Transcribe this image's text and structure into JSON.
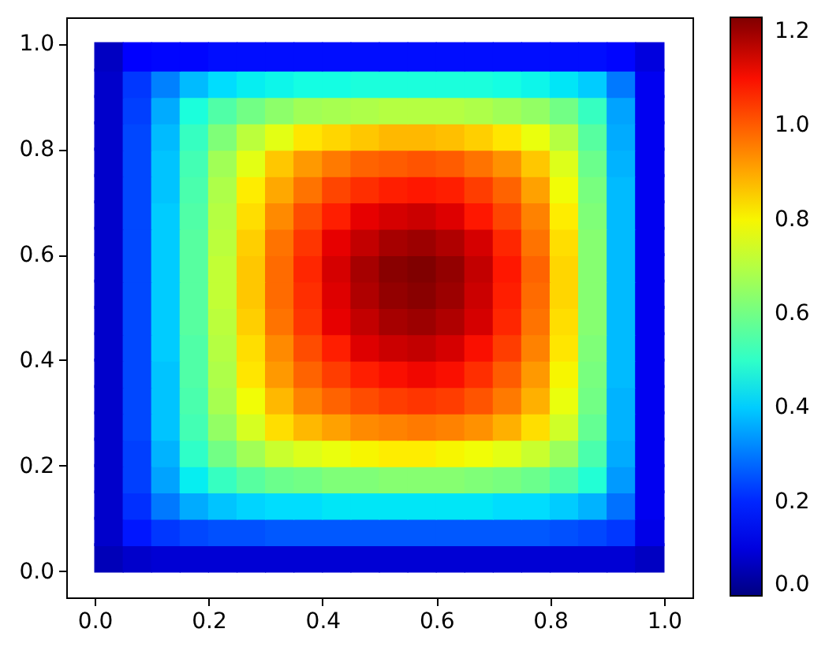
{
  "chart_data": {
    "type": "scatter",
    "marker": "square",
    "x": [
      0.025,
      0.075,
      0.125,
      0.175,
      0.225,
      0.275,
      0.325,
      0.375,
      0.425,
      0.475,
      0.525,
      0.575,
      0.625,
      0.675,
      0.725,
      0.775,
      0.825,
      0.875,
      0.925,
      0.975,
      0.025,
      0.075,
      0.125,
      0.175,
      0.225,
      0.275,
      0.325,
      0.375,
      0.425,
      0.475,
      0.525,
      0.575,
      0.625,
      0.675,
      0.725,
      0.775,
      0.825,
      0.875,
      0.925,
      0.975,
      0.025,
      0.075,
      0.125,
      0.175,
      0.225,
      0.275,
      0.325,
      0.375,
      0.425,
      0.475,
      0.525,
      0.575,
      0.625,
      0.675,
      0.725,
      0.775,
      0.825,
      0.875,
      0.925,
      0.975,
      0.025,
      0.075,
      0.125,
      0.175,
      0.225,
      0.275,
      0.325,
      0.375,
      0.425,
      0.475,
      0.525,
      0.575,
      0.625,
      0.675,
      0.725,
      0.775,
      0.825,
      0.875,
      0.925,
      0.975,
      0.025,
      0.075,
      0.125,
      0.175,
      0.225,
      0.275,
      0.325,
      0.375,
      0.425,
      0.475,
      0.525,
      0.575,
      0.625,
      0.675,
      0.725,
      0.775,
      0.825,
      0.875,
      0.925,
      0.975,
      0.025,
      0.075,
      0.125,
      0.175,
      0.225,
      0.275,
      0.325,
      0.375,
      0.425,
      0.475,
      0.525,
      0.575,
      0.625,
      0.675,
      0.725,
      0.775,
      0.825,
      0.875,
      0.925,
      0.975,
      0.025,
      0.075,
      0.125,
      0.175,
      0.225,
      0.275,
      0.325,
      0.375,
      0.425,
      0.475,
      0.525,
      0.575,
      0.625,
      0.675,
      0.725,
      0.775,
      0.825,
      0.875,
      0.925,
      0.975,
      0.025,
      0.075,
      0.125,
      0.175,
      0.225,
      0.275,
      0.325,
      0.375,
      0.425,
      0.475,
      0.525,
      0.575,
      0.625,
      0.675,
      0.725,
      0.775,
      0.825,
      0.875,
      0.925,
      0.975,
      0.025,
      0.075,
      0.125,
      0.175,
      0.225,
      0.275,
      0.325,
      0.375,
      0.425,
      0.475,
      0.525,
      0.575,
      0.625,
      0.675,
      0.725,
      0.775,
      0.825,
      0.875,
      0.925,
      0.975,
      0.025,
      0.075,
      0.125,
      0.175,
      0.225,
      0.275,
      0.325,
      0.375,
      0.425,
      0.475,
      0.525,
      0.575,
      0.625,
      0.675,
      0.725,
      0.775,
      0.825,
      0.875,
      0.925,
      0.975,
      0.025,
      0.075,
      0.125,
      0.175,
      0.225,
      0.275,
      0.325,
      0.375,
      0.425,
      0.475,
      0.525,
      0.575,
      0.625,
      0.675,
      0.725,
      0.775,
      0.825,
      0.875,
      0.925,
      0.975,
      0.025,
      0.075,
      0.125,
      0.175,
      0.225,
      0.275,
      0.325,
      0.375,
      0.425,
      0.475,
      0.525,
      0.575,
      0.625,
      0.675,
      0.725,
      0.775,
      0.825,
      0.875,
      0.925,
      0.975,
      0.025,
      0.075,
      0.125,
      0.175,
      0.225,
      0.275,
      0.325,
      0.375,
      0.425,
      0.475,
      0.525,
      0.575,
      0.625,
      0.675,
      0.725,
      0.775,
      0.825,
      0.875,
      0.925,
      0.975,
      0.025,
      0.075,
      0.125,
      0.175,
      0.225,
      0.275,
      0.325,
      0.375,
      0.425,
      0.475,
      0.525,
      0.575,
      0.625,
      0.675,
      0.725,
      0.775,
      0.825,
      0.875,
      0.925,
      0.975,
      0.025,
      0.075,
      0.125,
      0.175,
      0.225,
      0.275,
      0.325,
      0.375,
      0.425,
      0.475,
      0.525,
      0.575,
      0.625,
      0.675,
      0.725,
      0.775,
      0.825,
      0.875,
      0.925,
      0.975,
      0.025,
      0.075,
      0.125,
      0.175,
      0.225,
      0.275,
      0.325,
      0.375,
      0.425,
      0.475,
      0.525,
      0.575,
      0.625,
      0.675,
      0.725,
      0.775,
      0.825,
      0.875,
      0.925,
      0.975,
      0.025,
      0.075,
      0.125,
      0.175,
      0.225,
      0.275,
      0.325,
      0.375,
      0.425,
      0.475,
      0.525,
      0.575,
      0.625,
      0.675,
      0.725,
      0.775,
      0.825,
      0.875,
      0.925,
      0.975,
      0.025,
      0.075,
      0.125,
      0.175,
      0.225,
      0.275,
      0.325,
      0.375,
      0.425,
      0.475,
      0.525,
      0.575,
      0.625,
      0.675,
      0.725,
      0.775,
      0.825,
      0.875,
      0.925,
      0.975,
      0.025,
      0.075,
      0.125,
      0.175,
      0.225,
      0.275,
      0.325,
      0.375,
      0.425,
      0.475,
      0.525,
      0.575,
      0.625,
      0.675,
      0.725,
      0.775,
      0.825,
      0.875,
      0.925,
      0.975,
      0.025,
      0.075,
      0.125,
      0.175,
      0.225,
      0.275,
      0.325,
      0.375,
      0.425,
      0.475,
      0.525,
      0.575,
      0.625,
      0.675,
      0.725,
      0.775,
      0.825,
      0.875,
      0.925,
      0.975
    ],
    "values": [
      0.025,
      0.025,
      0.025,
      0.025,
      0.025,
      0.025,
      0.025,
      0.025,
      0.025,
      0.025,
      0.025,
      0.025,
      0.025,
      0.025,
      0.025,
      0.025,
      0.025,
      0.025,
      0.025,
      0.025,
      0.075,
      0.075,
      0.075,
      0.075,
      0.075,
      0.075,
      0.075,
      0.075,
      0.075,
      0.075,
      0.075,
      0.075,
      0.075,
      0.075,
      0.075,
      0.075,
      0.075,
      0.075,
      0.075,
      0.075,
      0.125,
      0.125,
      0.125,
      0.125,
      0.125,
      0.125,
      0.125,
      0.125,
      0.125,
      0.125,
      0.125,
      0.125,
      0.125,
      0.125,
      0.125,
      0.125,
      0.125,
      0.125,
      0.125,
      0.125,
      0.175,
      0.175,
      0.175,
      0.175,
      0.175,
      0.175,
      0.175,
      0.175,
      0.175,
      0.175,
      0.175,
      0.175,
      0.175,
      0.175,
      0.175,
      0.175,
      0.175,
      0.175,
      0.175,
      0.175,
      0.225,
      0.225,
      0.225,
      0.225,
      0.225,
      0.225,
      0.225,
      0.225,
      0.225,
      0.225,
      0.225,
      0.225,
      0.225,
      0.225,
      0.225,
      0.225,
      0.225,
      0.225,
      0.225,
      0.225,
      0.275,
      0.275,
      0.275,
      0.275,
      0.275,
      0.275,
      0.275,
      0.275,
      0.275,
      0.275,
      0.275,
      0.275,
      0.275,
      0.275,
      0.275,
      0.275,
      0.275,
      0.275,
      0.275,
      0.275,
      0.325,
      0.325,
      0.325,
      0.325,
      0.325,
      0.325,
      0.325,
      0.325,
      0.325,
      0.325,
      0.325,
      0.325,
      0.325,
      0.325,
      0.325,
      0.325,
      0.325,
      0.325,
      0.325,
      0.325,
      0.375,
      0.375,
      0.375,
      0.375,
      0.375,
      0.375,
      0.375,
      0.375,
      0.375,
      0.375,
      0.375,
      0.375,
      0.375,
      0.375,
      0.375,
      0.375,
      0.375,
      0.375,
      0.375,
      0.375,
      0.425,
      0.425,
      0.425,
      0.425,
      0.425,
      0.425,
      0.425,
      0.425,
      0.425,
      0.425,
      0.425,
      0.425,
      0.425,
      0.425,
      0.425,
      0.425,
      0.425,
      0.425,
      0.425,
      0.425,
      0.475,
      0.475,
      0.475,
      0.475,
      0.475,
      0.475,
      0.475,
      0.475,
      0.475,
      0.475,
      0.475,
      0.475,
      0.475,
      0.475,
      0.475,
      0.475,
      0.475,
      0.475,
      0.475,
      0.475,
      0.525,
      0.525,
      0.525,
      0.525,
      0.525,
      0.525,
      0.525,
      0.525,
      0.525,
      0.525,
      0.525,
      0.525,
      0.525,
      0.525,
      0.525,
      0.525,
      0.525,
      0.525,
      0.525,
      0.525,
      0.575,
      0.575,
      0.575,
      0.575,
      0.575,
      0.575,
      0.575,
      0.575,
      0.575,
      0.575,
      0.575,
      0.575,
      0.575,
      0.575,
      0.575,
      0.575,
      0.575,
      0.575,
      0.575,
      0.575,
      0.625,
      0.625,
      0.625,
      0.625,
      0.625,
      0.625,
      0.625,
      0.625,
      0.625,
      0.625,
      0.625,
      0.625,
      0.625,
      0.625,
      0.625,
      0.625,
      0.625,
      0.625,
      0.625,
      0.625,
      0.675,
      0.675,
      0.675,
      0.675,
      0.675,
      0.675,
      0.675,
      0.675,
      0.675,
      0.675,
      0.675,
      0.675,
      0.675,
      0.675,
      0.675,
      0.675,
      0.675,
      0.675,
      0.675,
      0.675,
      0.725,
      0.725,
      0.725,
      0.725,
      0.725,
      0.725,
      0.725,
      0.725,
      0.725,
      0.725,
      0.725,
      0.725,
      0.725,
      0.725,
      0.725,
      0.725,
      0.725,
      0.725,
      0.725,
      0.725,
      0.775,
      0.775,
      0.775,
      0.775,
      0.775,
      0.775,
      0.775,
      0.775,
      0.775,
      0.775,
      0.775,
      0.775,
      0.775,
      0.775,
      0.775,
      0.775,
      0.775,
      0.775,
      0.775,
      0.775,
      0.825,
      0.825,
      0.825,
      0.825,
      0.825,
      0.825,
      0.825,
      0.825,
      0.825,
      0.825,
      0.825,
      0.825,
      0.825,
      0.825,
      0.825,
      0.825,
      0.825,
      0.825,
      0.825,
      0.825,
      0.875,
      0.875,
      0.875,
      0.875,
      0.875,
      0.875,
      0.875,
      0.875,
      0.875,
      0.875,
      0.875,
      0.875,
      0.875,
      0.875,
      0.875,
      0.875,
      0.875,
      0.875,
      0.875,
      0.875,
      0.925,
      0.925,
      0.925,
      0.925,
      0.925,
      0.925,
      0.925,
      0.925,
      0.925,
      0.925,
      0.925,
      0.925,
      0.925,
      0.925,
      0.925,
      0.925,
      0.925,
      0.925,
      0.925,
      0.925,
      0.975,
      0.975,
      0.975,
      0.975,
      0.975,
      0.975,
      0.975,
      0.975,
      0.975,
      0.975,
      0.975,
      0.975,
      0.975,
      0.975,
      0.975,
      0.975,
      0.975,
      0.975,
      0.975,
      0.975
    ],
    "cvalues": [
      0.06,
      0.08,
      0.09,
      0.09,
      0.09,
      0.09,
      0.09,
      0.09,
      0.09,
      0.09,
      0.09,
      0.09,
      0.09,
      0.09,
      0.09,
      0.09,
      0.09,
      0.09,
      0.09,
      0.07,
      0.08,
      0.18,
      0.22,
      0.24,
      0.25,
      0.25,
      0.26,
      0.26,
      0.26,
      0.26,
      0.26,
      0.26,
      0.26,
      0.26,
      0.26,
      0.26,
      0.25,
      0.24,
      0.22,
      0.11,
      0.08,
      0.21,
      0.3,
      0.36,
      0.39,
      0.41,
      0.42,
      0.42,
      0.43,
      0.43,
      0.43,
      0.43,
      0.43,
      0.43,
      0.42,
      0.42,
      0.4,
      0.37,
      0.29,
      0.12,
      0.08,
      0.23,
      0.35,
      0.44,
      0.51,
      0.56,
      0.59,
      0.6,
      0.62,
      0.62,
      0.63,
      0.63,
      0.63,
      0.62,
      0.61,
      0.59,
      0.55,
      0.48,
      0.34,
      0.12,
      0.08,
      0.23,
      0.37,
      0.5,
      0.6,
      0.67,
      0.73,
      0.76,
      0.78,
      0.8,
      0.81,
      0.81,
      0.8,
      0.79,
      0.77,
      0.73,
      0.66,
      0.54,
      0.36,
      0.12,
      0.08,
      0.24,
      0.39,
      0.53,
      0.65,
      0.75,
      0.83,
      0.88,
      0.91,
      0.94,
      0.95,
      0.96,
      0.95,
      0.93,
      0.89,
      0.83,
      0.74,
      0.58,
      0.37,
      0.12,
      0.08,
      0.24,
      0.39,
      0.54,
      0.68,
      0.79,
      0.88,
      0.95,
      0.99,
      1.02,
      1.04,
      1.05,
      1.04,
      1.01,
      0.96,
      0.89,
      0.78,
      0.6,
      0.37,
      0.12,
      0.08,
      0.24,
      0.39,
      0.55,
      0.69,
      0.82,
      0.92,
      0.99,
      1.04,
      1.08,
      1.1,
      1.11,
      1.1,
      1.06,
      1.0,
      0.92,
      0.8,
      0.61,
      0.38,
      0.12,
      0.08,
      0.24,
      0.4,
      0.55,
      0.7,
      0.83,
      0.94,
      1.02,
      1.08,
      1.13,
      1.15,
      1.16,
      1.14,
      1.1,
      1.04,
      0.95,
      0.82,
      0.62,
      0.38,
      0.12,
      0.08,
      0.24,
      0.4,
      0.56,
      0.71,
      0.85,
      0.97,
      1.05,
      1.12,
      1.16,
      1.19,
      1.2,
      1.18,
      1.14,
      1.07,
      0.97,
      0.83,
      0.63,
      0.38,
      0.12,
      0.08,
      0.24,
      0.4,
      0.56,
      0.72,
      0.86,
      0.98,
      1.06,
      1.13,
      1.18,
      1.21,
      1.22,
      1.2,
      1.15,
      1.08,
      0.98,
      0.84,
      0.63,
      0.38,
      0.12,
      0.08,
      0.24,
      0.4,
      0.56,
      0.72,
      0.86,
      0.98,
      1.07,
      1.14,
      1.19,
      1.22,
      1.23,
      1.21,
      1.16,
      1.09,
      0.99,
      0.84,
      0.63,
      0.38,
      0.12,
      0.08,
      0.24,
      0.4,
      0.56,
      0.71,
      0.85,
      0.97,
      1.05,
      1.12,
      1.16,
      1.19,
      1.2,
      1.18,
      1.14,
      1.07,
      0.97,
      0.83,
      0.63,
      0.38,
      0.12,
      0.08,
      0.24,
      0.4,
      0.55,
      0.7,
      0.83,
      0.94,
      1.02,
      1.08,
      1.12,
      1.14,
      1.15,
      1.13,
      1.09,
      1.03,
      0.95,
      0.81,
      0.62,
      0.38,
      0.12,
      0.08,
      0.24,
      0.39,
      0.54,
      0.69,
      0.81,
      0.9,
      0.97,
      1.03,
      1.06,
      1.08,
      1.09,
      1.08,
      1.04,
      0.99,
      0.91,
      0.79,
      0.61,
      0.38,
      0.12,
      0.08,
      0.24,
      0.39,
      0.53,
      0.67,
      0.77,
      0.86,
      0.92,
      0.96,
      0.99,
      1.0,
      1.01,
      1.0,
      0.97,
      0.93,
      0.86,
      0.76,
      0.59,
      0.37,
      0.12,
      0.08,
      0.24,
      0.38,
      0.51,
      0.62,
      0.71,
      0.77,
      0.82,
      0.84,
      0.86,
      0.88,
      0.88,
      0.87,
      0.85,
      0.82,
      0.78,
      0.7,
      0.56,
      0.36,
      0.12,
      0.08,
      0.23,
      0.36,
      0.47,
      0.55,
      0.6,
      0.64,
      0.67,
      0.68,
      0.69,
      0.7,
      0.7,
      0.7,
      0.69,
      0.67,
      0.65,
      0.6,
      0.51,
      0.35,
      0.12,
      0.08,
      0.22,
      0.31,
      0.38,
      0.42,
      0.44,
      0.45,
      0.46,
      0.46,
      0.47,
      0.47,
      0.47,
      0.47,
      0.47,
      0.46,
      0.45,
      0.43,
      0.4,
      0.3,
      0.12,
      0.07,
      0.14,
      0.16,
      0.16,
      0.17,
      0.17,
      0.17,
      0.17,
      0.17,
      0.17,
      0.17,
      0.17,
      0.17,
      0.17,
      0.17,
      0.17,
      0.17,
      0.17,
      0.16,
      0.1
    ],
    "xlim": [
      -0.05,
      1.05
    ],
    "ylim": [
      -0.05,
      1.05
    ],
    "xticks": [
      {
        "value": 0,
        "label": "0.0"
      },
      0.2,
      0.4,
      0.6,
      0.8,
      {
        "value": 1,
        "label": "1.0"
      }
    ],
    "yticks": [
      {
        "value": 0,
        "label": "0.0"
      },
      0.2,
      0.4,
      0.6,
      0.8,
      {
        "value": 1,
        "label": "1.0"
      }
    ],
    "clim": [
      0,
      1.23
    ],
    "cticks": [
      {
        "value": 0,
        "label": "0.0"
      },
      0.2,
      0.4,
      0.6,
      0.8,
      {
        "value": 1,
        "label": "1.0"
      },
      1.2
    ]
  }
}
